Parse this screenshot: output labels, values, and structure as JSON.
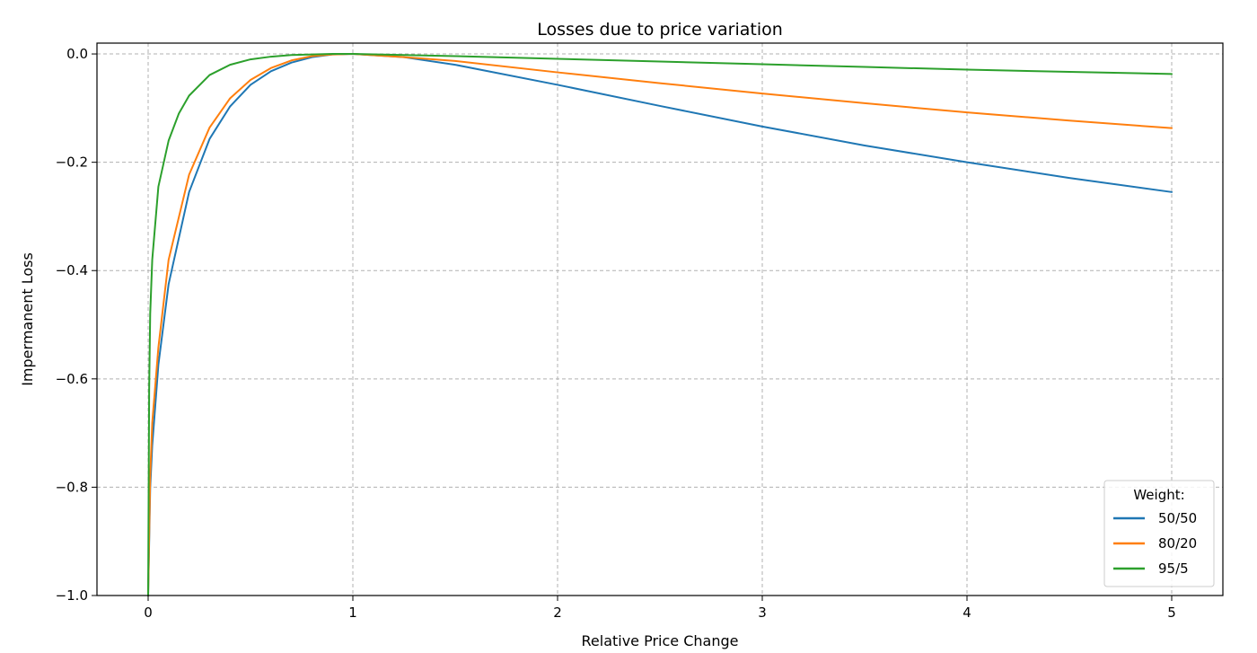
{
  "chart_data": {
    "type": "line",
    "title": "Losses due to price variation",
    "xlabel": "Relative Price Change",
    "ylabel": "Impermanent Loss",
    "xlim": [
      -0.25,
      5.25
    ],
    "ylim": [
      -1.0,
      0.02
    ],
    "xticks": [
      0,
      1,
      2,
      3,
      4,
      5
    ],
    "xtick_labels": [
      "0",
      "1",
      "2",
      "3",
      "4",
      "5"
    ],
    "yticks": [
      0.0,
      -0.2,
      -0.4,
      -0.6,
      -0.8,
      -1.0
    ],
    "ytick_labels": [
      "0.0",
      "−0.2",
      "−0.4",
      "−0.6",
      "−0.8",
      "−1.0"
    ],
    "grid": true,
    "grid_style": "dashed",
    "legend": {
      "title": "Weight:",
      "position": "bottom-right"
    },
    "series": [
      {
        "name": "50/50",
        "color": "#1f77b4",
        "x": [
          0.0,
          0.01,
          0.02,
          0.05,
          0.1,
          0.2,
          0.3,
          0.4,
          0.5,
          0.6,
          0.7,
          0.8,
          0.9,
          1.0,
          1.25,
          1.5,
          2.0,
          2.5,
          3.0,
          3.5,
          4.0,
          4.5,
          5.0
        ],
        "values": [
          -1.0,
          -0.802,
          -0.723,
          -0.574,
          -0.425,
          -0.255,
          -0.157,
          -0.097,
          -0.057,
          -0.032,
          -0.016,
          -0.006,
          -0.001,
          0.0,
          -0.006,
          -0.02,
          -0.057,
          -0.096,
          -0.134,
          -0.169,
          -0.2,
          -0.229,
          -0.255
        ]
      },
      {
        "name": "80/20",
        "color": "#ff7f0e",
        "x": [
          0.0,
          0.01,
          0.02,
          0.05,
          0.1,
          0.2,
          0.3,
          0.4,
          0.5,
          0.6,
          0.7,
          0.8,
          0.9,
          1.0,
          1.25,
          1.5,
          2.0,
          2.5,
          3.0,
          3.5,
          4.0,
          4.5,
          5.0
        ],
        "values": [
          -1.0,
          -0.779,
          -0.681,
          -0.542,
          -0.38,
          -0.223,
          -0.136,
          -0.082,
          -0.048,
          -0.026,
          -0.012,
          -0.004,
          -0.001,
          0.0,
          -0.006,
          -0.013,
          -0.034,
          -0.054,
          -0.073,
          -0.091,
          -0.108,
          -0.123,
          -0.137
        ]
      },
      {
        "name": "95/5",
        "color": "#2ca02c",
        "x": [
          0.0,
          0.005,
          0.01,
          0.02,
          0.05,
          0.1,
          0.15,
          0.2,
          0.3,
          0.4,
          0.5,
          0.6,
          0.7,
          0.8,
          0.9,
          1.0,
          1.5,
          2.0,
          2.5,
          3.0,
          3.5,
          4.0,
          4.5,
          5.0
        ],
        "values": [
          -1.0,
          -0.62,
          -0.48,
          -0.38,
          -0.245,
          -0.16,
          -0.11,
          -0.077,
          -0.039,
          -0.02,
          -0.01,
          -0.005,
          -0.002,
          -0.001,
          0.0,
          0.0,
          -0.004,
          -0.009,
          -0.014,
          -0.019,
          -0.024,
          -0.029,
          -0.033,
          -0.037
        ]
      }
    ]
  }
}
